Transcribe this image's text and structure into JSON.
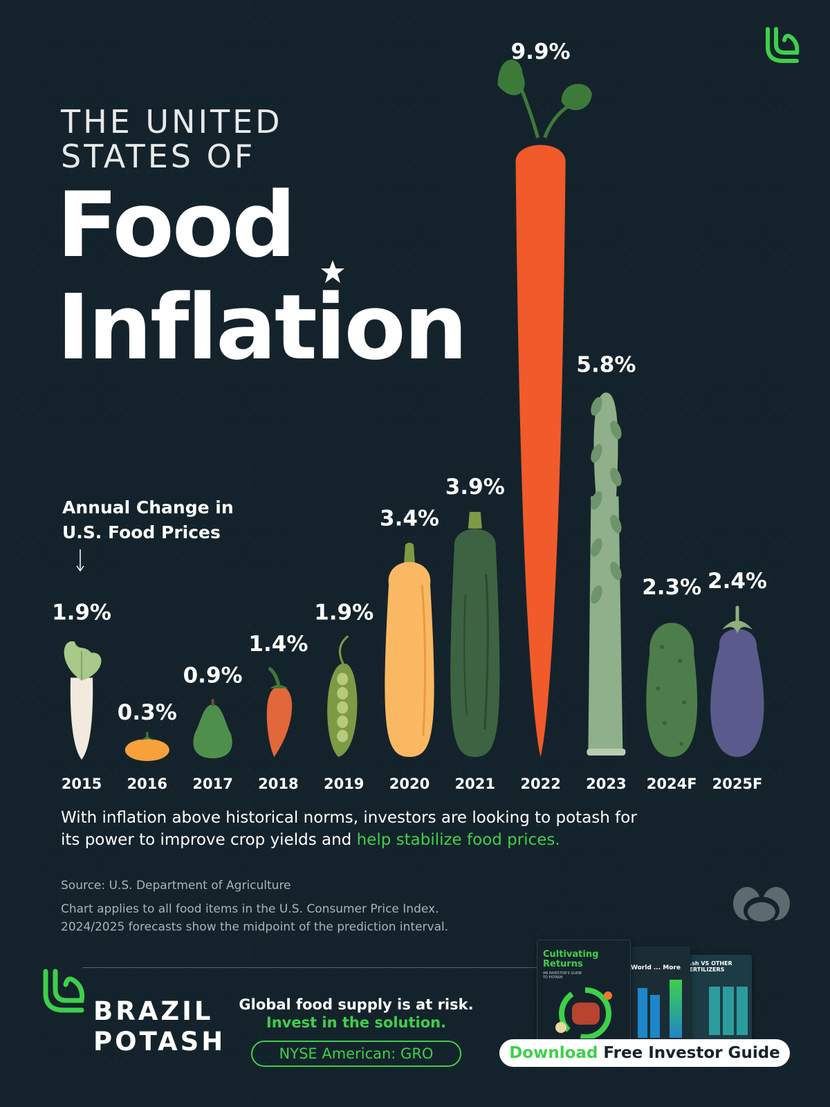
{
  "header": {
    "line1": "THE UNITED",
    "line2": "STATES OF",
    "line3": "Food",
    "line4": "Inflation"
  },
  "chart_data": {
    "type": "bar",
    "subtitle_line1": "Annual Change in",
    "subtitle_line2": "U.S. Food Prices",
    "categories": [
      "2015",
      "2016",
      "2017",
      "2018",
      "2019",
      "2020",
      "2021",
      "2022",
      "2023",
      "2024F",
      "2025F"
    ],
    "values": [
      1.9,
      0.3,
      0.9,
      1.4,
      1.9,
      3.4,
      3.9,
      9.9,
      5.8,
      2.3,
      2.4
    ],
    "labels": [
      "1.9%",
      "0.3%",
      "0.9%",
      "1.4%",
      "1.9%",
      "3.4%",
      "3.9%",
      "9.9%",
      "5.8%",
      "2.3%",
      "2.4%"
    ],
    "marks": [
      "radish",
      "tomato",
      "avocado",
      "chili pepper",
      "pea pod",
      "squash",
      "zucchini",
      "carrot",
      "asparagus",
      "pickle",
      "eggplant"
    ],
    "ylabel": "Annual Change in U.S. Food Prices (%)"
  },
  "body": {
    "text_main": "With inflation above historical norms, investors are looking to potash for its power to improve crop yields and ",
    "text_highlight": "help stabilize food prices."
  },
  "notes": {
    "source": "Source: U.S. Department of Agriculture",
    "note1": "Chart applies to all food items in the U.S. Consumer Price Index.",
    "note2": "2024/2025 forecasts show the midpoint of the prediction interval."
  },
  "footer": {
    "brand_line1": "BRAZIL",
    "brand_line2": "POTASH",
    "cta_line1": "Global food supply is at risk.",
    "cta_line2": "Invest in the solution.",
    "ticker": "NYSE American: GRO",
    "download_word": "Download",
    "download_rest": " Free Investor Guide",
    "book_title_line1": "Cultivating",
    "book_title_line2": "Returns",
    "book_sub": "AN INVESTOR'S GUIDE TO POTASH",
    "book2_title": "World ... More",
    "book3_title": "...sh VS OTHER FERTILIZERS"
  },
  "colors": {
    "background": "#14232b",
    "accent_green": "#3ed04a",
    "radish": "#f2e9df",
    "tomato": "#f7a13d",
    "avocado": "#4f8f4c",
    "chili": "#e2673a",
    "pea": "#7d9a45",
    "squash": "#fbb862",
    "zucchini": "#3d6342",
    "carrot": "#f15a2b",
    "asparagus": "#8fb08a",
    "pickle": "#4d7d4a",
    "eggplant": "#5a5a8c"
  }
}
